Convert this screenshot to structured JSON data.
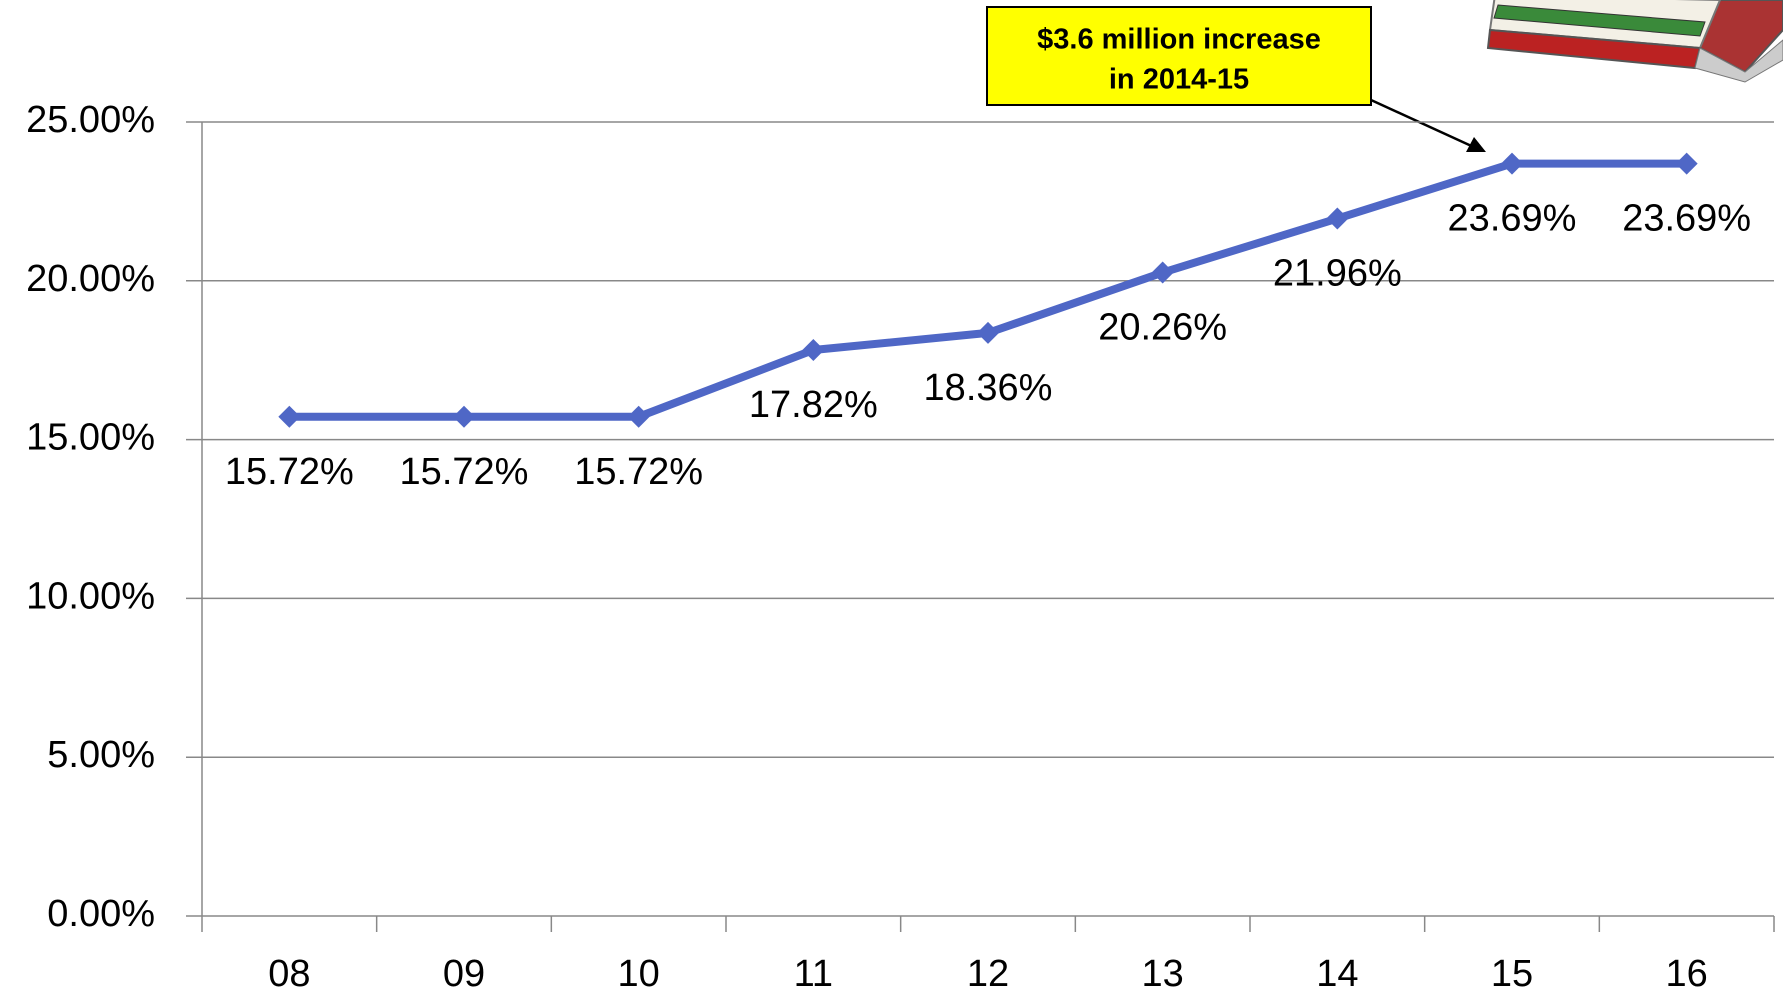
{
  "chart_data": {
    "type": "line",
    "categories": [
      "08",
      "09",
      "10",
      "11",
      "12",
      "13",
      "14",
      "15",
      "16"
    ],
    "series": [
      {
        "color": "#4f67c6",
        "values": [
          15.72,
          15.72,
          15.72,
          17.82,
          18.36,
          20.26,
          21.96,
          23.69,
          23.69
        ],
        "value_labels": [
          "15.72%",
          "15.72%",
          "15.72%",
          "17.82%",
          "18.36%",
          "20.26%",
          "21.96%",
          "23.69%",
          "23.69%"
        ]
      }
    ],
    "ylim": [
      0,
      25
    ],
    "yticks": [
      {
        "value": 0,
        "label": "0.00%"
      },
      {
        "value": 5,
        "label": "5.00%"
      },
      {
        "value": 10,
        "label": "10.00%"
      },
      {
        "value": 15,
        "label": "15.00%"
      },
      {
        "value": 20,
        "label": "20.00%"
      },
      {
        "value": 25,
        "label": "25.00%"
      }
    ],
    "grid": true,
    "annotation": {
      "lines": [
        "$3.6 million increase",
        "in 2014-15"
      ]
    }
  }
}
